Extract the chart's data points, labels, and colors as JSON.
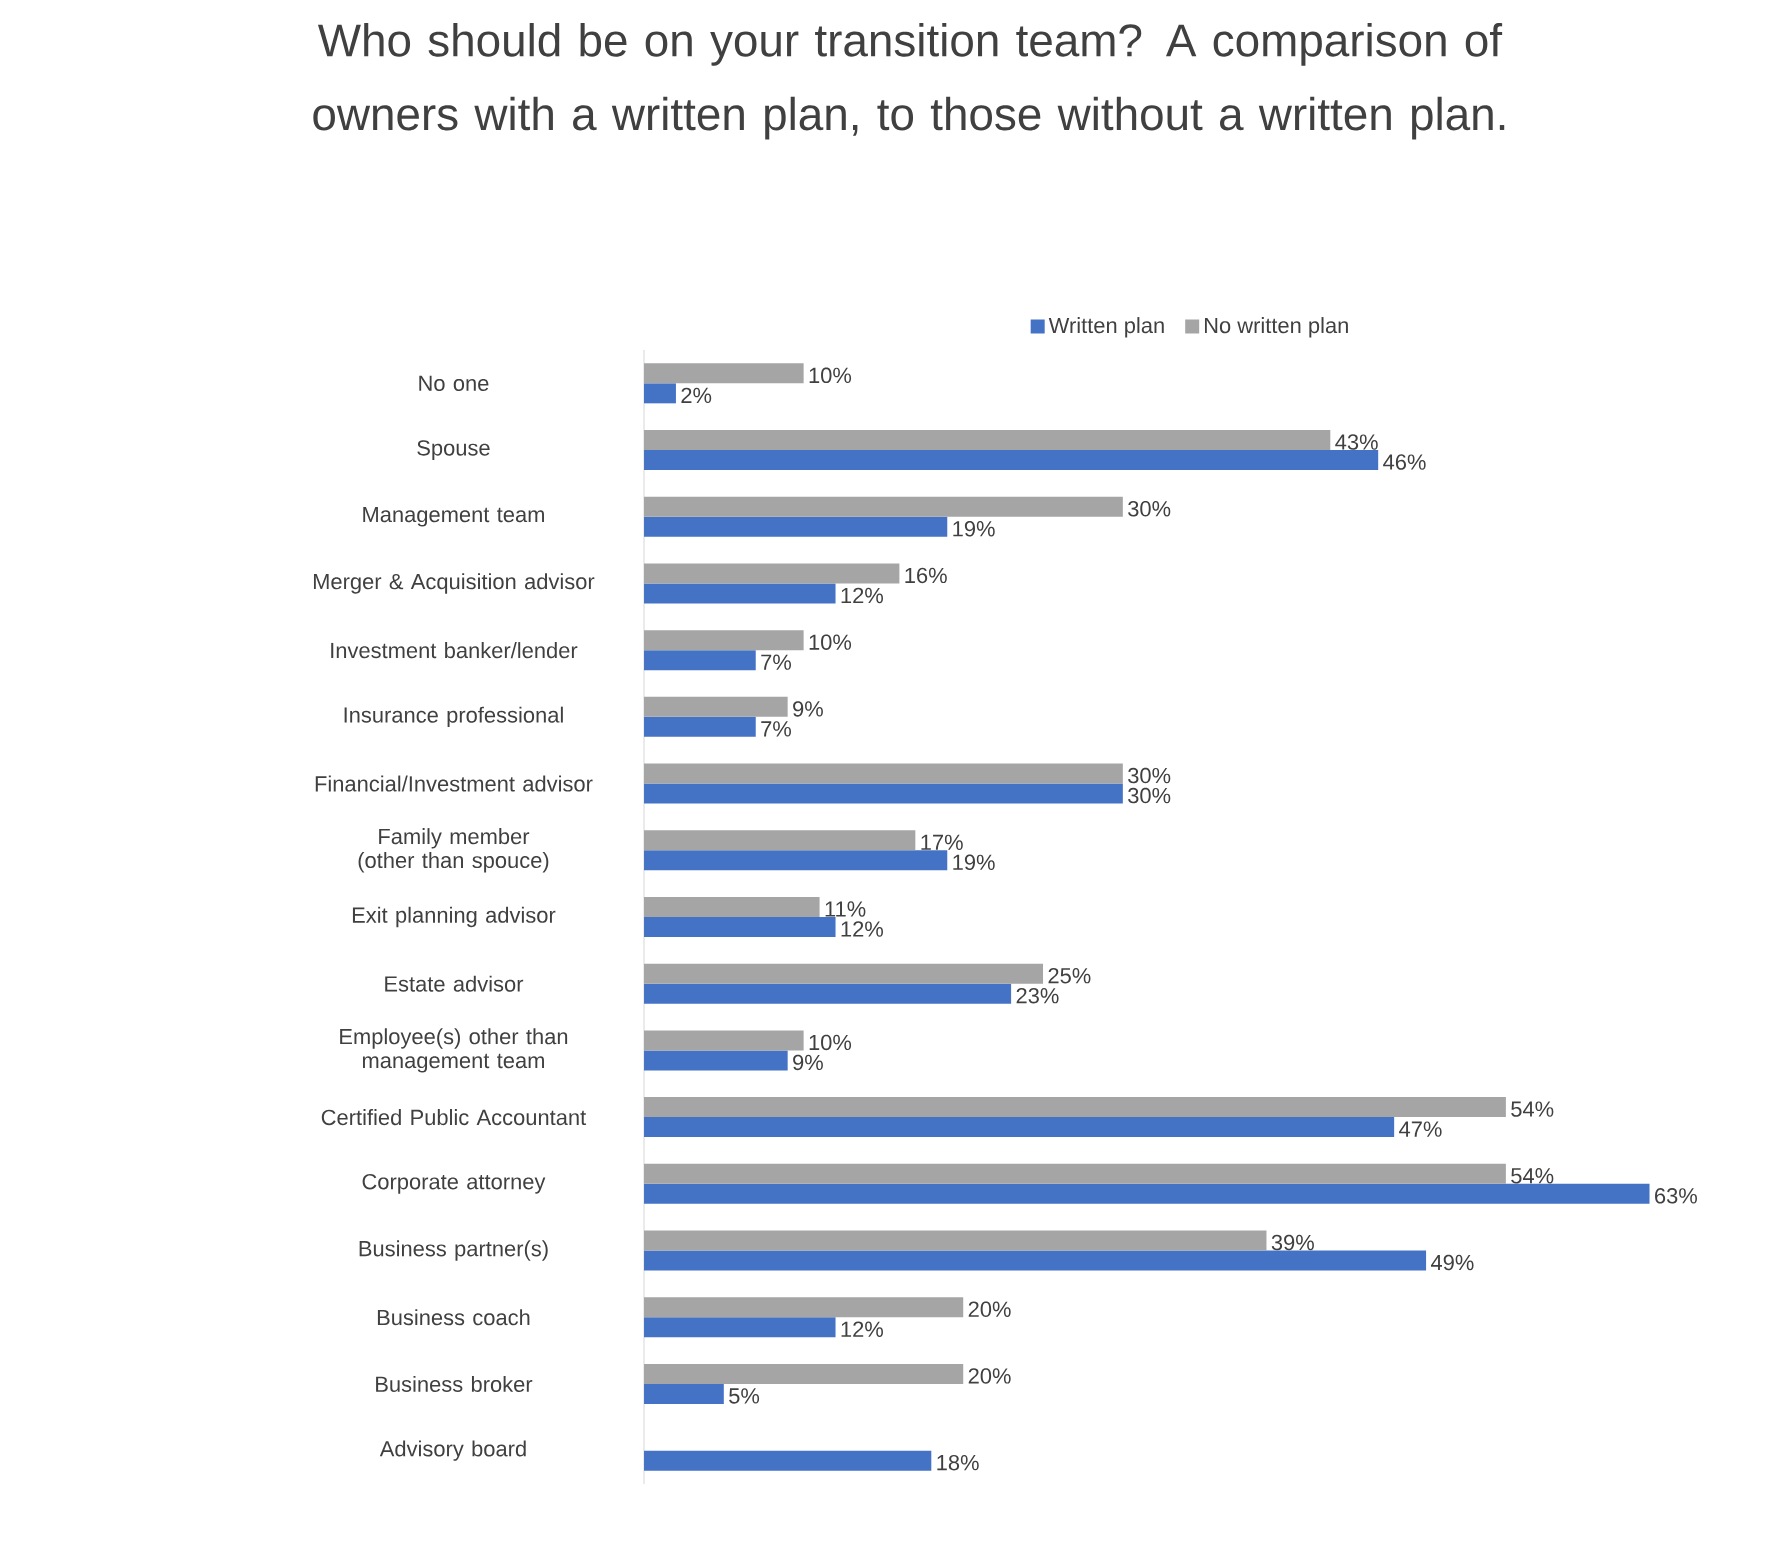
{
  "chart_data": {
    "type": "bar",
    "orientation": "horizontal",
    "title": "Who should be on your transition team? A comparison of owners with a written plan, to those  without a written plan.",
    "categories": [
      "No one",
      "Spouse",
      "Management team",
      "Merger & Acquisition advisor",
      "Investment banker/lender",
      "Insurance professional",
      "Financial/Investment advisor",
      "Family member (other than spouce)",
      "Exit planning advisor",
      "Estate advisor",
      "Employee(s) other than management team",
      "Certified Public Accountant",
      "Corporate attorney",
      "Business partner(s)",
      "Business coach",
      "Business broker",
      "Advisory board"
    ],
    "series": [
      {
        "name": "Written plan",
        "color": "#4472c4",
        "values": [
          2,
          46,
          19,
          12,
          7,
          7,
          30,
          19,
          12,
          23,
          9,
          47,
          63,
          49,
          12,
          5,
          18
        ],
        "value_labels": [
          "2%",
          "46%",
          "19%",
          "12%",
          "7%",
          "7%",
          "30%",
          "19%",
          "12%",
          "23%",
          "9%",
          "47%",
          "63%",
          "49%",
          "12%",
          "5%",
          "18%"
        ]
      },
      {
        "name": "No written plan",
        "color": "#a5a5a5",
        "values": [
          10,
          43,
          30,
          16,
          10,
          9,
          30,
          17,
          11,
          25,
          10,
          54,
          54,
          39,
          20,
          20,
          null
        ],
        "value_labels": [
          "10%",
          "43%",
          "30%",
          "16%",
          "10%",
          "9%",
          "30%",
          "17%",
          "11%",
          "25%",
          "10%",
          "54%",
          "54%",
          "39%",
          "20%",
          "20%",
          null
        ]
      }
    ],
    "legend": "top"
  }
}
